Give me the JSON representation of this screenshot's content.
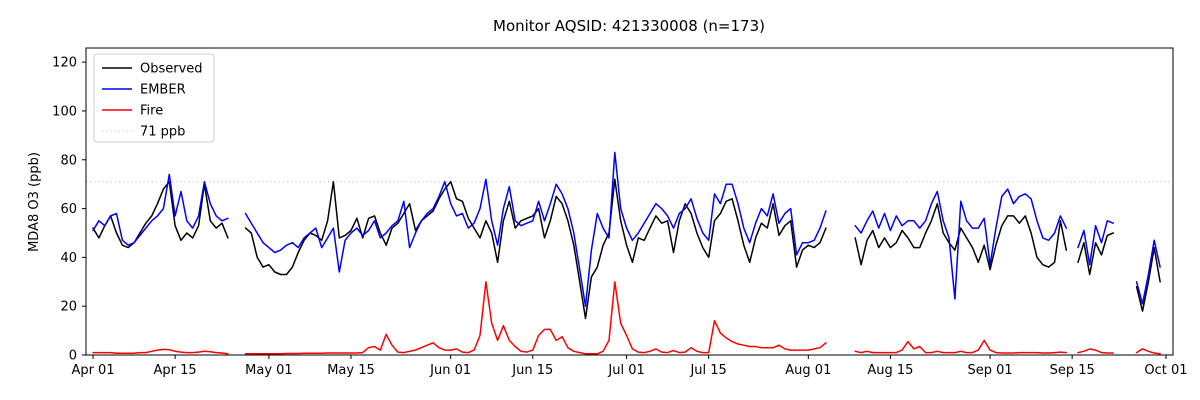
{
  "figure": {
    "title": "Monitor AQSID: 421330008 (n=173)"
  },
  "chart_data": {
    "type": "line",
    "title": "Monitor AQSID: 421330008 (n=173)",
    "xlabel": "",
    "ylabel": "MDA8 O3 (ppb)",
    "x_unit": "days since Apr 01",
    "xlim": [
      -1.2,
      184.2
    ],
    "ylim": [
      0,
      125.8
    ],
    "yticks": [
      0,
      20,
      40,
      60,
      80,
      100,
      120
    ],
    "xticks": {
      "days": [
        0,
        14,
        30,
        44,
        61,
        75,
        91,
        105,
        122,
        136,
        153,
        167,
        183
      ],
      "labels": [
        "Apr 01",
        "Apr 15",
        "May 01",
        "May 15",
        "Jun 01",
        "Jun 15",
        "Jul 01",
        "Jul 15",
        "Aug 01",
        "Aug 15",
        "Sep 01",
        "Sep 15",
        "Oct 01"
      ]
    },
    "grid": false,
    "legend_position": "upper-left",
    "threshold_line": {
      "value": 71,
      "label": "71 ppb",
      "color": "#d3d3d3",
      "style": "dotted"
    },
    "legend_items": [
      {
        "label": "Observed",
        "color": "#000000",
        "dash": "solid"
      },
      {
        "label": "EMBER",
        "color": "#0000ff",
        "dash": "solid"
      },
      {
        "label": "Fire",
        "color": "#ff0000",
        "dash": "solid"
      },
      {
        "label": "71 ppb",
        "color": "#d3d3d3",
        "dash": "dotted"
      }
    ],
    "series": [
      {
        "name": "Observed",
        "color": "#000000",
        "values": [
          52,
          48,
          53,
          57,
          50,
          45,
          44,
          46,
          50,
          54,
          57,
          62,
          68,
          71,
          53,
          47,
          50,
          48,
          53,
          70,
          55,
          52,
          54,
          48,
          null,
          null,
          52,
          50,
          40,
          36,
          37,
          34,
          33,
          33,
          36,
          42,
          47,
          50,
          49,
          47,
          55,
          71,
          48,
          49,
          51,
          56,
          48,
          56,
          57,
          50,
          45,
          52,
          54,
          58,
          62,
          51,
          55,
          57,
          59,
          64,
          68,
          71,
          64,
          63,
          56,
          52,
          48,
          55,
          50,
          38,
          55,
          63,
          52,
          55,
          56,
          57,
          60,
          48,
          55,
          65,
          62,
          55,
          45,
          30,
          15,
          32,
          36,
          45,
          50,
          72,
          55,
          45,
          38,
          48,
          47,
          52,
          57,
          54,
          55,
          42,
          55,
          62,
          58,
          50,
          44,
          40,
          55,
          58,
          63,
          64,
          55,
          45,
          38,
          48,
          54,
          52,
          62,
          49,
          53,
          55,
          36,
          43,
          45,
          44,
          46,
          52,
          null,
          null,
          null,
          null,
          48,
          37,
          47,
          51,
          44,
          48,
          44,
          46,
          51,
          48,
          44,
          44,
          50,
          55,
          62,
          50,
          46,
          43,
          52,
          48,
          44,
          38,
          45,
          35,
          45,
          53,
          57,
          57,
          54,
          57,
          50,
          40,
          37,
          36,
          38,
          55,
          43,
          null,
          38,
          46,
          33,
          46,
          41,
          49,
          50,
          null,
          null,
          null,
          28,
          18,
          30,
          44,
          30
        ]
      },
      {
        "name": "EMBER",
        "color": "#0000ff",
        "values": [
          51,
          55,
          53,
          57,
          58,
          47,
          45,
          46,
          49,
          52,
          55,
          57,
          60,
          74,
          57,
          67,
          55,
          52,
          57,
          71,
          62,
          57,
          55,
          56,
          null,
          null,
          58,
          54,
          50,
          46,
          44,
          42,
          43,
          45,
          46,
          44,
          48,
          50,
          52,
          44,
          48,
          52,
          34,
          47,
          50,
          52,
          49,
          51,
          55,
          48,
          50,
          53,
          55,
          63,
          44,
          50,
          55,
          58,
          60,
          65,
          71,
          62,
          57,
          58,
          52,
          54,
          60,
          72,
          55,
          45,
          60,
          69,
          55,
          53,
          54,
          55,
          63,
          55,
          62,
          70,
          66,
          60,
          50,
          35,
          20,
          43,
          58,
          52,
          48,
          83,
          60,
          52,
          47,
          50,
          54,
          58,
          62,
          60,
          57,
          52,
          58,
          60,
          64,
          56,
          50,
          47,
          66,
          62,
          70,
          70,
          62,
          52,
          46,
          54,
          60,
          57,
          66,
          54,
          58,
          60,
          41,
          46,
          46,
          47,
          52,
          59,
          null,
          null,
          null,
          null,
          53,
          50,
          55,
          59,
          52,
          58,
          51,
          57,
          53,
          55,
          55,
          52,
          55,
          62,
          67,
          55,
          48,
          23,
          63,
          55,
          52,
          52,
          56,
          37,
          52,
          65,
          68,
          62,
          65,
          66,
          64,
          55,
          48,
          47,
          50,
          57,
          52,
          null,
          44,
          51,
          37,
          53,
          46,
          55,
          54,
          null,
          null,
          null,
          30,
          21,
          33,
          47,
          36
        ]
      },
      {
        "name": "Fire",
        "color": "#ff0000",
        "values": [
          1,
          1,
          1,
          1,
          0.7,
          0.7,
          0.7,
          0.7,
          1,
          1,
          1.5,
          2,
          2.3,
          2.2,
          1.5,
          1.2,
          1,
          1,
          1.2,
          1.5,
          1.3,
          1,
          0.8,
          0.5,
          null,
          null,
          0.5,
          0.5,
          0.5,
          0.5,
          0.5,
          0.5,
          0.5,
          0.6,
          0.6,
          0.6,
          0.7,
          0.7,
          0.7,
          0.7,
          0.8,
          0.8,
          0.8,
          0.8,
          0.8,
          0.8,
          1,
          3,
          3.5,
          2,
          8.5,
          4,
          1.2,
          1,
          1.5,
          2,
          3,
          4,
          5,
          3,
          2,
          2,
          2.5,
          1.2,
          1,
          2,
          8,
          30,
          13,
          6,
          12,
          6,
          3.5,
          1.5,
          1.2,
          2,
          8,
          10.5,
          10.5,
          6,
          7.5,
          3,
          1.5,
          1,
          0.5,
          0.5,
          0.5,
          1.5,
          6,
          30,
          13,
          8,
          2.5,
          1.2,
          1,
          1.5,
          2.5,
          1.2,
          1,
          1.8,
          1,
          1.2,
          3,
          1.5,
          1,
          1,
          14,
          9,
          7,
          5.5,
          4.5,
          4,
          3.5,
          3.5,
          3,
          3,
          3,
          4,
          2.5,
          2,
          2,
          2,
          2,
          2.5,
          3,
          5,
          null,
          null,
          null,
          null,
          1.5,
          1,
          1.5,
          1,
          1,
          1,
          1,
          1,
          2,
          5.5,
          2.5,
          3.5,
          1,
          1,
          1.5,
          1,
          1,
          1,
          1.5,
          1,
          1,
          2,
          6,
          2,
          1,
          0.8,
          0.8,
          0.8,
          1,
          1,
          1,
          1,
          0.8,
          0.8,
          1,
          1.2,
          1,
          null,
          1,
          1.5,
          2.5,
          2,
          1,
          0.8,
          0.8,
          null,
          null,
          null,
          1,
          2.5,
          1.5,
          0.8,
          0.5
        ]
      }
    ]
  }
}
